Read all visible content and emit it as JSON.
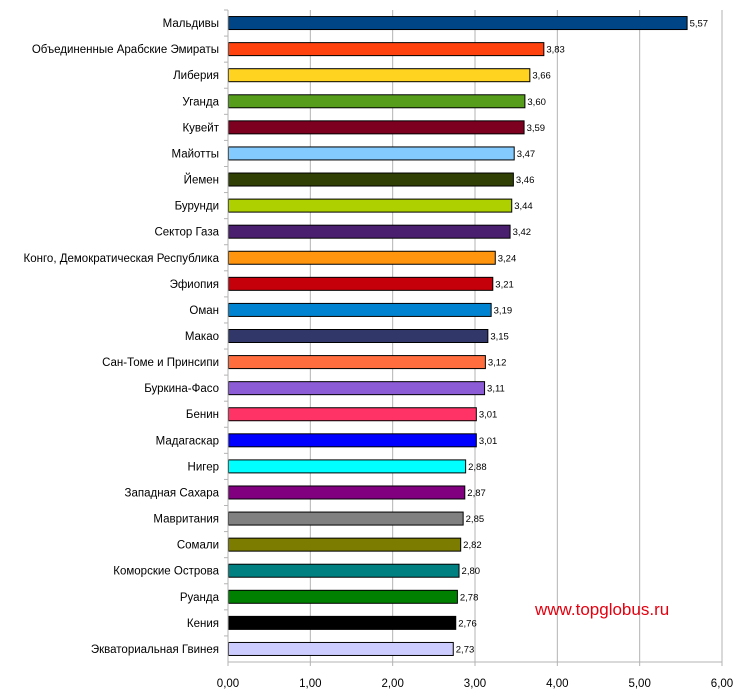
{
  "chart_data": {
    "type": "bar",
    "orientation": "horizontal",
    "categories": [
      "Мальдивы",
      "Объединенные Арабские Эмираты",
      "Либерия",
      "Уганда",
      "Кувейт",
      "Майотты",
      "Йемен",
      "Бурунди",
      "Сектор Газа",
      "Конго, Демократическая Республика",
      "Эфиопия",
      "Оман",
      "Макао",
      "Сан-Томе и Принсипи",
      "Буркина-Фасо",
      "Бенин",
      "Мадагаскар",
      "Нигер",
      "Западная Сахара",
      "Мавритания",
      "Сомали",
      "Коморские Острова",
      "Руанда",
      "Кения",
      "Экваториальная Гвинея"
    ],
    "values": [
      5.57,
      3.83,
      3.66,
      3.6,
      3.59,
      3.47,
      3.46,
      3.44,
      3.42,
      3.24,
      3.21,
      3.19,
      3.15,
      3.12,
      3.11,
      3.01,
      3.01,
      2.88,
      2.87,
      2.85,
      2.82,
      2.8,
      2.78,
      2.76,
      2.73
    ],
    "value_labels": [
      "5,57",
      "3,83",
      "3,66",
      "3,60",
      "3,59",
      "3,47",
      "3,46",
      "3,44",
      "3,42",
      "3,24",
      "3,21",
      "3,19",
      "3,15",
      "3,12",
      "3,11",
      "3,01",
      "3,01",
      "2,88",
      "2,87",
      "2,85",
      "2,82",
      "2,80",
      "2,78",
      "2,76",
      "2,73"
    ],
    "colors": [
      "#004586",
      "#ff420e",
      "#ffd320",
      "#579d1c",
      "#7e0021",
      "#83caff",
      "#314004",
      "#aecf00",
      "#4b1f6f",
      "#ff950e",
      "#c5000b",
      "#0084d1",
      "#313769",
      "#ff6d3e",
      "#8c5bd6",
      "#ff3366",
      "#0000ff",
      "#00ffff",
      "#800080",
      "#808080",
      "#7c7c00",
      "#008080",
      "#008000",
      "#000000",
      "#ccccff"
    ],
    "x_ticks": [
      "0,00",
      "1,00",
      "2,00",
      "3,00",
      "4,00",
      "5,00",
      "6,00"
    ],
    "xlim": [
      0,
      6
    ],
    "grid": "vertical",
    "title": "",
    "xlabel": "",
    "ylabel": ""
  },
  "watermark": "www.topglobus.ru"
}
